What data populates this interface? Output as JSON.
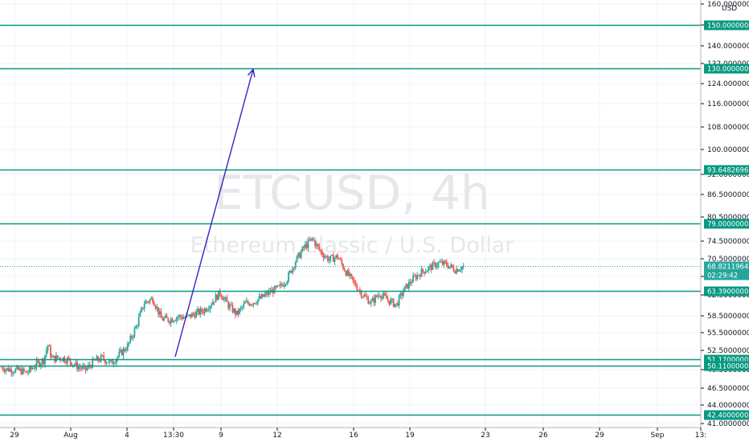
{
  "chart_data": {
    "type": "candlestick",
    "symbol": "ETCUSD, 4h",
    "description": "Ethereum Classic / U.S. Dollar",
    "currency_label": "USD",
    "y_axis_ticks": [
      "160.0000000",
      "150.0000000",
      "140.0000000",
      "132.0000000",
      "124.0000000",
      "116.0000000",
      "108.0000000",
      "100.0000000",
      "92.0000000",
      "86.5000000",
      "80.5000000",
      "74.5000000",
      "70.5000000",
      "66.5000000",
      "62.5000000",
      "58.5000000",
      "55.5000000",
      "52.5000000",
      "49.5000000",
      "46.5000000",
      "44.0000000",
      "41.0000000"
    ],
    "x_axis_ticks": [
      "29",
      "Aug",
      "4",
      "13:30",
      "9",
      "12",
      "16",
      "19",
      "23",
      "26",
      "29",
      "Sep",
      "13:"
    ],
    "horizontal_levels": [
      "150.0000000",
      "130.0000000",
      "93.6482696",
      "79.0000000",
      "63.3900000",
      "51.1700000",
      "50.1100000",
      "42.4000000"
    ],
    "current_price": "68.8211964",
    "countdown": "02:29:42",
    "arrow": {
      "from_price": 51.5,
      "to_price": 130,
      "color": "#3a1fc4"
    },
    "ohlc_close_path": [
      {
        "d": 0,
        "v": 49.8
      },
      {
        "d": 1,
        "v": 49.5
      },
      {
        "d": 2,
        "v": 49.4
      },
      {
        "d": 3,
        "v": 49.0
      },
      {
        "d": 4,
        "v": 50.2
      },
      {
        "d": 5,
        "v": 51.0
      },
      {
        "d": 5.5,
        "v": 53.4
      },
      {
        "d": 6,
        "v": 51.2
      },
      {
        "d": 7,
        "v": 51.4
      },
      {
        "d": 8,
        "v": 51.0
      },
      {
        "d": 9,
        "v": 50.0
      },
      {
        "d": 10,
        "v": 49.5
      },
      {
        "d": 11,
        "v": 50.8
      },
      {
        "d": 12,
        "v": 51.3
      },
      {
        "d": 13,
        "v": 50.5
      },
      {
        "d": 14,
        "v": 51.8
      },
      {
        "d": 15,
        "v": 53.2
      },
      {
        "d": 16,
        "v": 56.5
      },
      {
        "d": 17,
        "v": 61.0
      },
      {
        "d": 18,
        "v": 61.8
      },
      {
        "d": 19,
        "v": 58.0
      },
      {
        "d": 20,
        "v": 57.8
      },
      {
        "d": 21,
        "v": 58.4
      },
      {
        "d": 22,
        "v": 58.2
      },
      {
        "d": 23,
        "v": 58.9
      },
      {
        "d": 24,
        "v": 59.5
      },
      {
        "d": 25,
        "v": 61.0
      },
      {
        "d": 26,
        "v": 63.0
      },
      {
        "d": 27,
        "v": 60.5
      },
      {
        "d": 28,
        "v": 58.8
      },
      {
        "d": 29,
        "v": 60.8
      },
      {
        "d": 30,
        "v": 61.2
      },
      {
        "d": 31,
        "v": 62.0
      },
      {
        "d": 32,
        "v": 63.2
      },
      {
        "d": 33,
        "v": 64.0
      },
      {
        "d": 34,
        "v": 66.0
      },
      {
        "d": 35,
        "v": 70.0
      },
      {
        "d": 36,
        "v": 73.0
      },
      {
        "d": 37,
        "v": 75.0
      },
      {
        "d": 38,
        "v": 72.0
      },
      {
        "d": 39,
        "v": 70.3
      },
      {
        "d": 40,
        "v": 71.0
      },
      {
        "d": 41,
        "v": 67.5
      },
      {
        "d": 42,
        "v": 65.0
      },
      {
        "d": 43,
        "v": 62.5
      },
      {
        "d": 44,
        "v": 61.0
      },
      {
        "d": 45,
        "v": 62.8
      },
      {
        "d": 46,
        "v": 61.5
      },
      {
        "d": 47,
        "v": 60.6
      },
      {
        "d": 48,
        "v": 63.8
      },
      {
        "d": 49,
        "v": 66.0
      },
      {
        "d": 50,
        "v": 67.5
      },
      {
        "d": 51,
        "v": 68.5
      },
      {
        "d": 52,
        "v": 69.5
      },
      {
        "d": 53,
        "v": 69.2
      },
      {
        "d": 54,
        "v": 68.0
      },
      {
        "d": 55,
        "v": 68.8
      }
    ]
  }
}
